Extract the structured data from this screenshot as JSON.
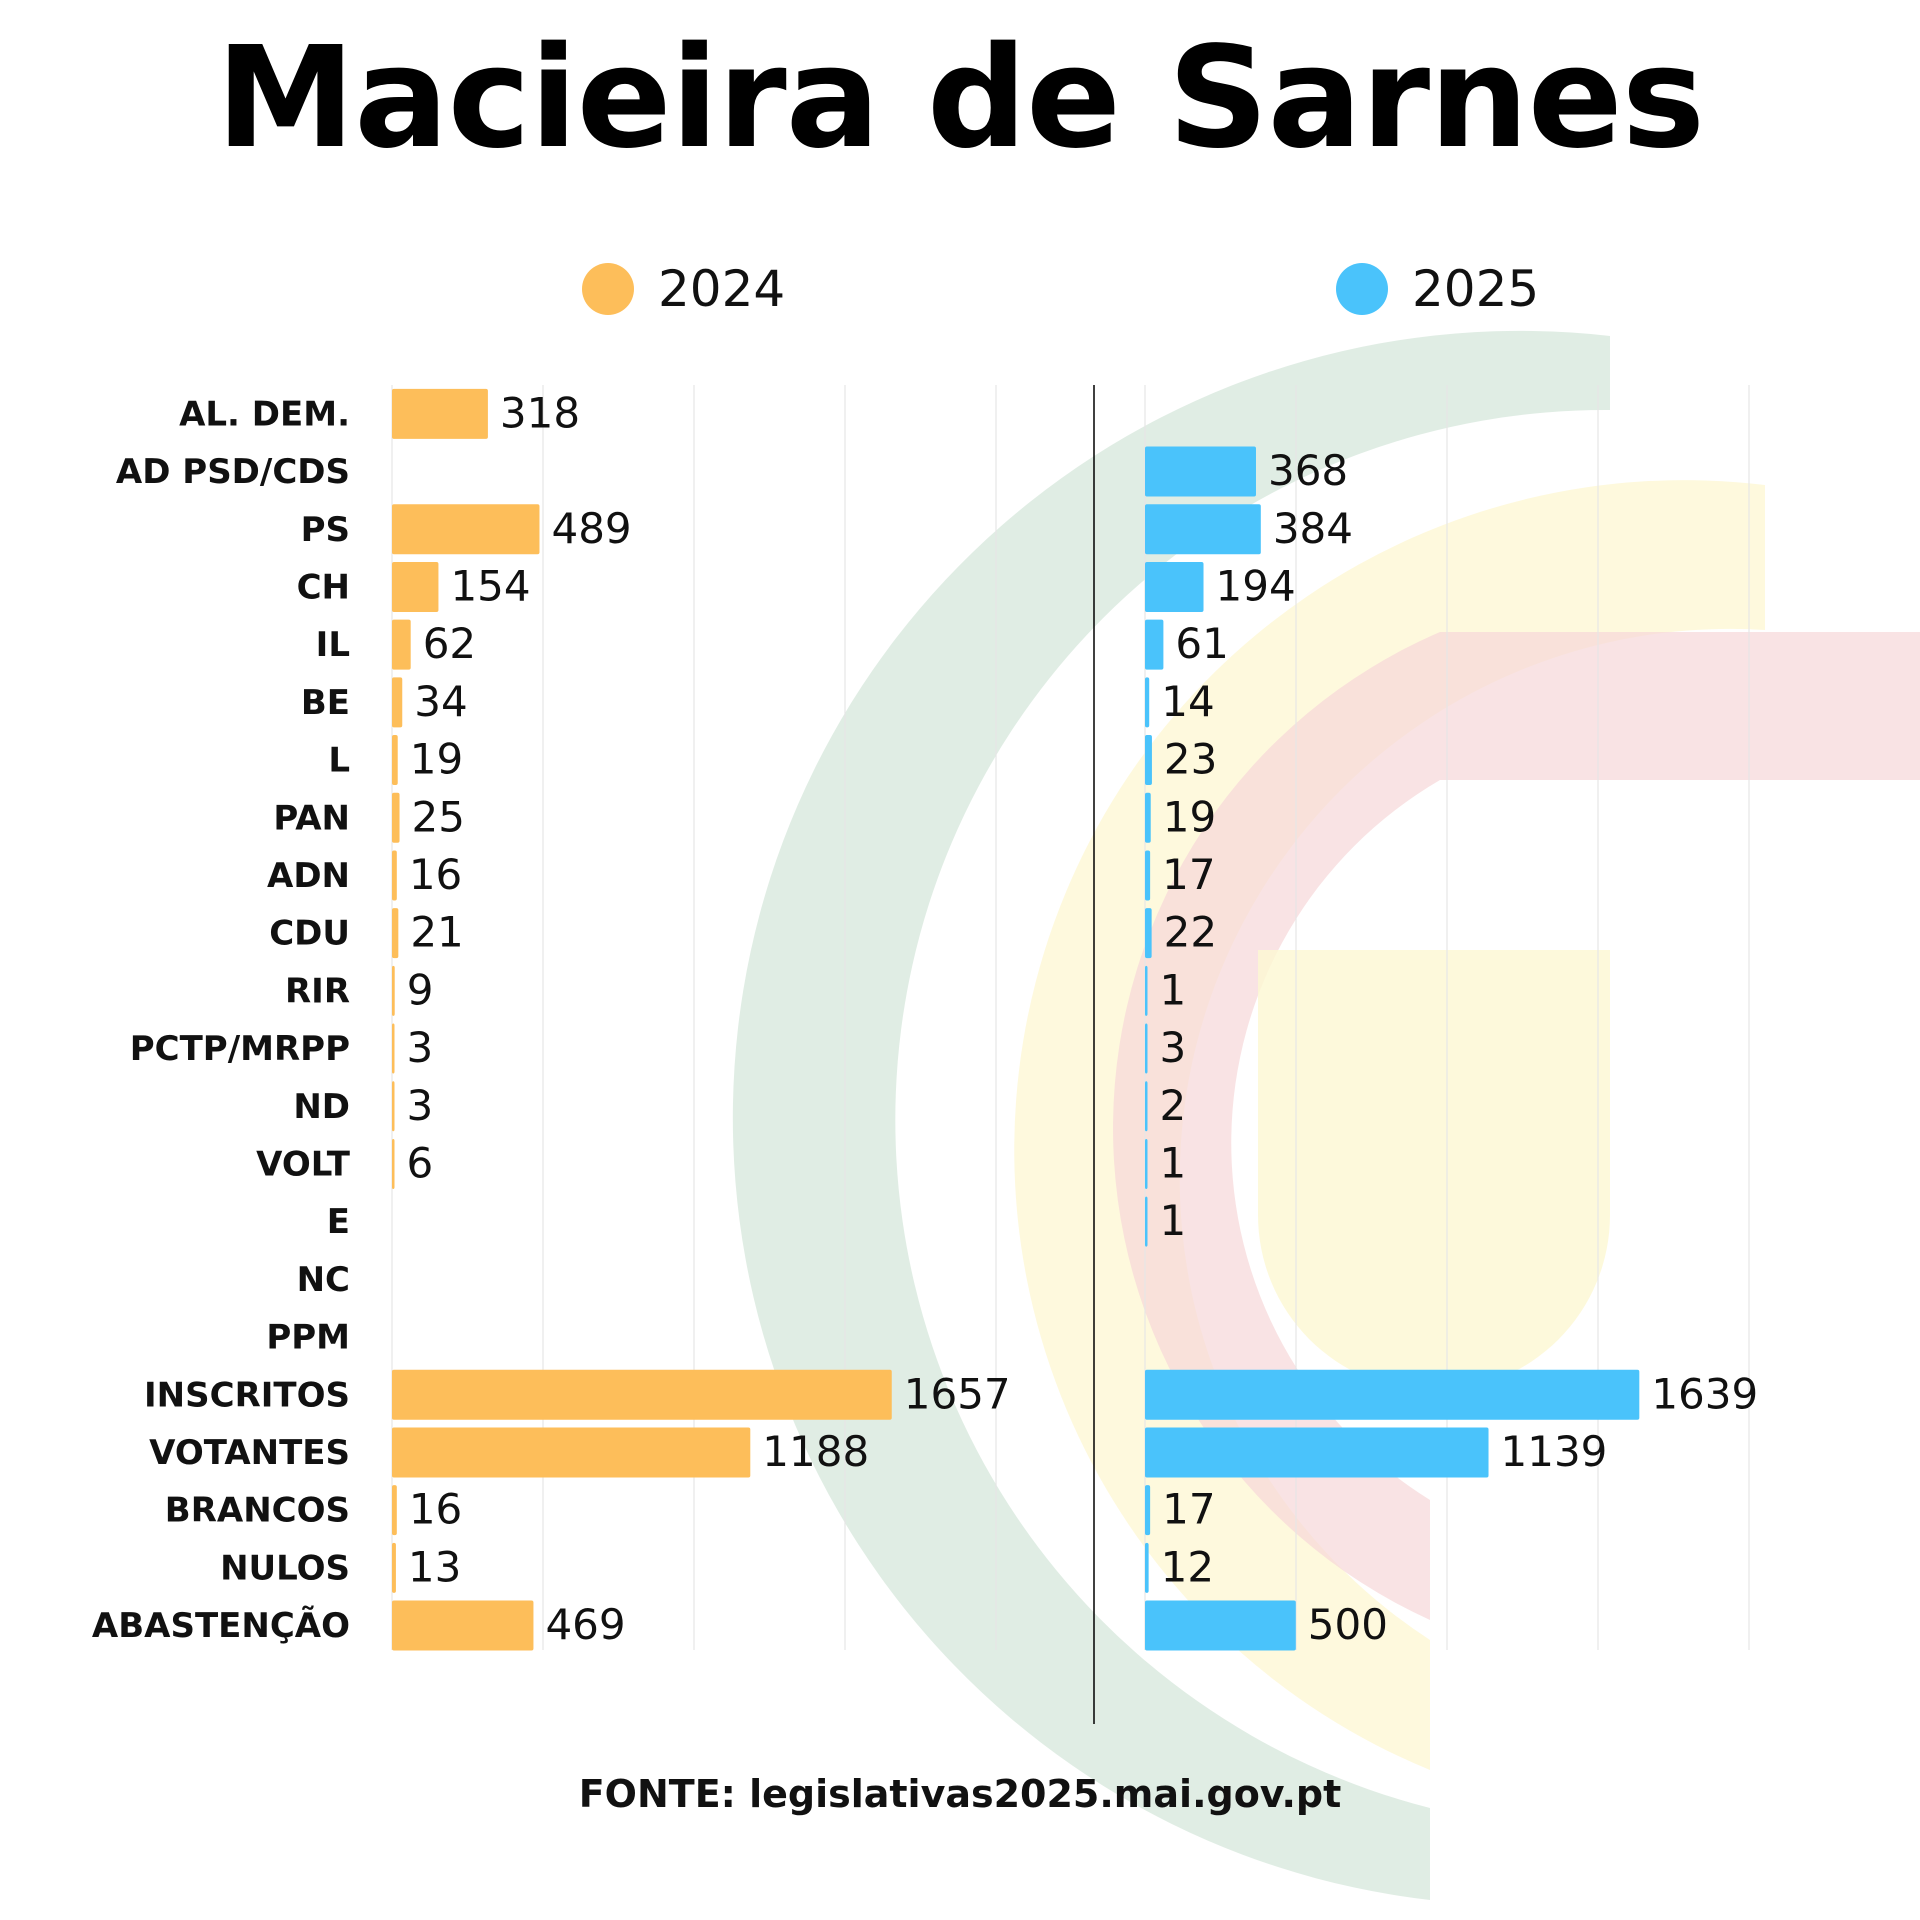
{
  "title": "Macieira de Sarnes",
  "source": "FONTE: legislativas2025.mai.gov.pt",
  "colors": {
    "y2024": "#FDBE5A",
    "y2025": "#4AC3FB",
    "grid": "#e6e6e6",
    "divider": "#000000"
  },
  "legend": [
    {
      "label": "2024",
      "color": "#FDBE5A"
    },
    {
      "label": "2025",
      "color": "#4AC3FB"
    }
  ],
  "chart_data": {
    "type": "bar",
    "orientation": "horizontal",
    "categories": [
      "AL. DEM.",
      "AD PSD/CDS",
      "PS",
      "CH",
      "IL",
      "BE",
      "L",
      "PAN",
      "ADN",
      "CDU",
      "RIR",
      "PCTP/MRPP",
      "ND",
      "VOLT",
      "E",
      "NC",
      "PPM",
      "INSCRITOS",
      "VOTANTES",
      "BRANCOS",
      "NULOS",
      "ABASTENÇÃO"
    ],
    "series": [
      {
        "name": "2024",
        "values": [
          318,
          null,
          489,
          154,
          62,
          34,
          19,
          25,
          16,
          21,
          9,
          3,
          3,
          6,
          null,
          null,
          null,
          1657,
          1188,
          16,
          13,
          469
        ]
      },
      {
        "name": "2025",
        "values": [
          null,
          368,
          384,
          194,
          61,
          14,
          23,
          19,
          17,
          22,
          1,
          3,
          2,
          1,
          1,
          null,
          null,
          1639,
          1139,
          17,
          12,
          500
        ]
      }
    ],
    "xlim": [
      0,
      2000
    ],
    "grid": true,
    "legend_position": "top"
  }
}
